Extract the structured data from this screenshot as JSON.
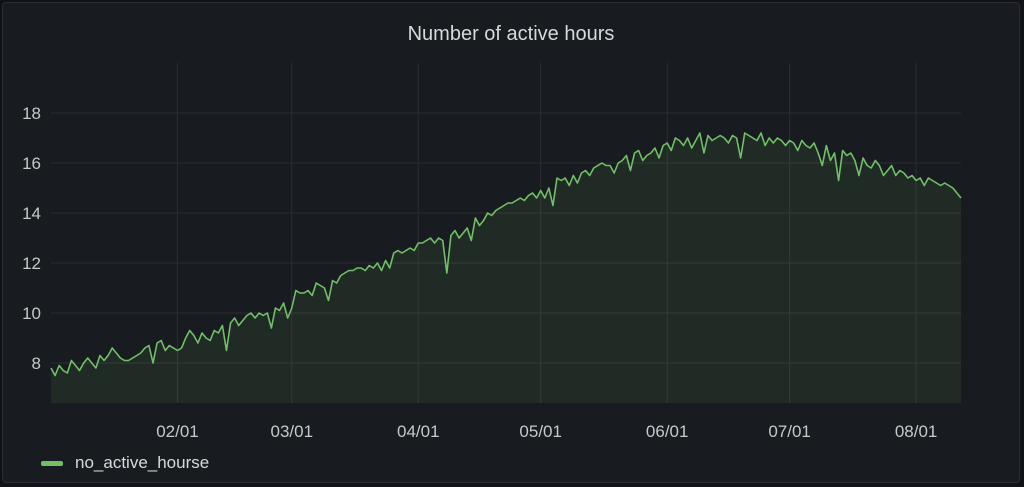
{
  "panel": {
    "title": "Number of active hours"
  },
  "colors": {
    "background": "#181b1f",
    "grid": "#2b2e33",
    "series": "#73bf69",
    "fill": "#73bf69",
    "text": "#c7c8ca"
  },
  "chart_data": {
    "type": "area",
    "title": "Number of active hours",
    "xlabel": "",
    "ylabel": "",
    "ylim": [
      6.4,
      18.4
    ],
    "yticks": [
      8,
      10,
      12,
      14,
      16,
      18
    ],
    "xtick_labels": [
      "02/01",
      "03/01",
      "04/01",
      "05/01",
      "06/01",
      "07/01",
      "08/01"
    ],
    "xtick_days": [
      31,
      59,
      90,
      120,
      151,
      181,
      212
    ],
    "x_unit": "day of year (0 = 01/01)",
    "grid": true,
    "legend": "bottom-left",
    "series": [
      {
        "name": "no_active_hourse",
        "color": "#73bf69",
        "points": [
          [
            0,
            7.8
          ],
          [
            1,
            7.5
          ],
          [
            2,
            7.9
          ],
          [
            3,
            7.7
          ],
          [
            4,
            7.6
          ],
          [
            5,
            8.1
          ],
          [
            6,
            7.9
          ],
          [
            7,
            7.7
          ],
          [
            8,
            8.0
          ],
          [
            9,
            8.2
          ],
          [
            10,
            8.0
          ],
          [
            11,
            7.8
          ],
          [
            12,
            8.3
          ],
          [
            13,
            8.1
          ],
          [
            14,
            8.3
          ],
          [
            15,
            8.6
          ],
          [
            16,
            8.4
          ],
          [
            17,
            8.2
          ],
          [
            18,
            8.1
          ],
          [
            19,
            8.1
          ],
          [
            20,
            8.2
          ],
          [
            21,
            8.3
          ],
          [
            22,
            8.4
          ],
          [
            23,
            8.6
          ],
          [
            24,
            8.7
          ],
          [
            25,
            8.0
          ],
          [
            26,
            8.8
          ],
          [
            27,
            8.9
          ],
          [
            28,
            8.5
          ],
          [
            29,
            8.7
          ],
          [
            30,
            8.6
          ],
          [
            31,
            8.5
          ],
          [
            32,
            8.6
          ],
          [
            33,
            9.0
          ],
          [
            34,
            9.3
          ],
          [
            35,
            9.1
          ],
          [
            36,
            8.8
          ],
          [
            37,
            9.2
          ],
          [
            38,
            9.0
          ],
          [
            39,
            8.9
          ],
          [
            40,
            9.3
          ],
          [
            41,
            9.2
          ],
          [
            42,
            9.5
          ],
          [
            43,
            8.5
          ],
          [
            44,
            9.6
          ],
          [
            45,
            9.8
          ],
          [
            46,
            9.5
          ],
          [
            47,
            9.7
          ],
          [
            48,
            9.9
          ],
          [
            49,
            10.0
          ],
          [
            50,
            9.8
          ],
          [
            51,
            10.0
          ],
          [
            52,
            9.9
          ],
          [
            53,
            10.0
          ],
          [
            54,
            9.4
          ],
          [
            55,
            10.2
          ],
          [
            56,
            10.1
          ],
          [
            57,
            10.4
          ],
          [
            58,
            9.8
          ],
          [
            59,
            10.2
          ],
          [
            60,
            10.9
          ],
          [
            61,
            10.8
          ],
          [
            62,
            10.8
          ],
          [
            63,
            10.9
          ],
          [
            64,
            10.7
          ],
          [
            65,
            11.2
          ],
          [
            66,
            11.1
          ],
          [
            67,
            11.0
          ],
          [
            68,
            10.5
          ],
          [
            69,
            11.3
          ],
          [
            70,
            11.2
          ],
          [
            71,
            11.5
          ],
          [
            72,
            11.6
          ],
          [
            73,
            11.7
          ],
          [
            74,
            11.7
          ],
          [
            75,
            11.8
          ],
          [
            76,
            11.8
          ],
          [
            77,
            11.7
          ],
          [
            78,
            11.9
          ],
          [
            79,
            11.8
          ],
          [
            80,
            12.0
          ],
          [
            81,
            11.7
          ],
          [
            82,
            12.1
          ],
          [
            83,
            11.8
          ],
          [
            84,
            12.4
          ],
          [
            85,
            12.5
          ],
          [
            86,
            12.4
          ],
          [
            87,
            12.5
          ],
          [
            88,
            12.6
          ],
          [
            89,
            12.5
          ],
          [
            90,
            12.8
          ],
          [
            91,
            12.8
          ],
          [
            92,
            12.9
          ],
          [
            93,
            13.0
          ],
          [
            94,
            12.8
          ],
          [
            95,
            13.0
          ],
          [
            96,
            12.9
          ],
          [
            97,
            11.6
          ],
          [
            98,
            13.1
          ],
          [
            99,
            13.3
          ],
          [
            100,
            13.0
          ],
          [
            101,
            13.2
          ],
          [
            102,
            13.4
          ],
          [
            103,
            12.9
          ],
          [
            104,
            13.8
          ],
          [
            105,
            13.5
          ],
          [
            106,
            13.7
          ],
          [
            107,
            14.0
          ],
          [
            108,
            13.9
          ],
          [
            109,
            14.1
          ],
          [
            110,
            14.2
          ],
          [
            111,
            14.3
          ],
          [
            112,
            14.4
          ],
          [
            113,
            14.4
          ],
          [
            114,
            14.5
          ],
          [
            115,
            14.6
          ],
          [
            116,
            14.5
          ],
          [
            117,
            14.7
          ],
          [
            118,
            14.8
          ],
          [
            119,
            14.6
          ],
          [
            120,
            14.9
          ],
          [
            121,
            14.6
          ],
          [
            122,
            15.0
          ],
          [
            123,
            14.3
          ],
          [
            124,
            15.4
          ],
          [
            125,
            15.3
          ],
          [
            126,
            15.4
          ],
          [
            127,
            15.1
          ],
          [
            128,
            15.5
          ],
          [
            129,
            15.2
          ],
          [
            130,
            15.6
          ],
          [
            131,
            15.7
          ],
          [
            132,
            15.5
          ],
          [
            133,
            15.8
          ],
          [
            134,
            15.9
          ],
          [
            135,
            16.0
          ],
          [
            136,
            15.9
          ],
          [
            137,
            15.9
          ],
          [
            138,
            15.6
          ],
          [
            139,
            16.0
          ],
          [
            140,
            16.1
          ],
          [
            141,
            16.3
          ],
          [
            142,
            15.7
          ],
          [
            143,
            16.4
          ],
          [
            144,
            16.5
          ],
          [
            145,
            16.1
          ],
          [
            146,
            16.3
          ],
          [
            147,
            16.4
          ],
          [
            148,
            16.6
          ],
          [
            149,
            16.2
          ],
          [
            150,
            16.7
          ],
          [
            151,
            16.8
          ],
          [
            152,
            16.5
          ],
          [
            153,
            17.0
          ],
          [
            154,
            16.9
          ],
          [
            155,
            16.7
          ],
          [
            156,
            17.0
          ],
          [
            157,
            16.6
          ],
          [
            158,
            16.9
          ],
          [
            159,
            17.2
          ],
          [
            160,
            16.4
          ],
          [
            161,
            17.1
          ],
          [
            162,
            16.9
          ],
          [
            163,
            17.0
          ],
          [
            164,
            17.1
          ],
          [
            165,
            17.0
          ],
          [
            166,
            16.8
          ],
          [
            167,
            17.1
          ],
          [
            168,
            17.0
          ],
          [
            169,
            16.2
          ],
          [
            170,
            17.2
          ],
          [
            171,
            17.1
          ],
          [
            172,
            17.0
          ],
          [
            173,
            16.9
          ],
          [
            174,
            17.2
          ],
          [
            175,
            16.7
          ],
          [
            176,
            17.0
          ],
          [
            177,
            16.8
          ],
          [
            178,
            17.0
          ],
          [
            179,
            16.9
          ],
          [
            180,
            16.7
          ],
          [
            181,
            16.9
          ],
          [
            182,
            16.8
          ],
          [
            183,
            16.5
          ],
          [
            184,
            16.9
          ],
          [
            185,
            16.7
          ],
          [
            186,
            16.6
          ],
          [
            187,
            16.8
          ],
          [
            188,
            16.4
          ],
          [
            189,
            15.9
          ],
          [
            190,
            16.7
          ],
          [
            191,
            16.1
          ],
          [
            192,
            16.4
          ],
          [
            193,
            15.3
          ],
          [
            194,
            16.5
          ],
          [
            195,
            16.3
          ],
          [
            196,
            16.4
          ],
          [
            197,
            16.1
          ],
          [
            198,
            15.5
          ],
          [
            199,
            16.2
          ],
          [
            200,
            15.9
          ],
          [
            201,
            15.8
          ],
          [
            202,
            16.1
          ],
          [
            203,
            15.9
          ],
          [
            204,
            15.5
          ],
          [
            205,
            15.7
          ],
          [
            206,
            15.9
          ],
          [
            207,
            15.5
          ],
          [
            208,
            15.7
          ],
          [
            209,
            15.6
          ],
          [
            210,
            15.4
          ],
          [
            211,
            15.5
          ],
          [
            212,
            15.3
          ],
          [
            213,
            15.4
          ],
          [
            214,
            15.1
          ],
          [
            215,
            15.4
          ],
          [
            216,
            15.3
          ],
          [
            217,
            15.2
          ],
          [
            218,
            15.1
          ],
          [
            219,
            15.2
          ],
          [
            220,
            15.1
          ],
          [
            221,
            15.0
          ],
          [
            222,
            14.8
          ],
          [
            223,
            14.6
          ]
        ]
      }
    ]
  }
}
